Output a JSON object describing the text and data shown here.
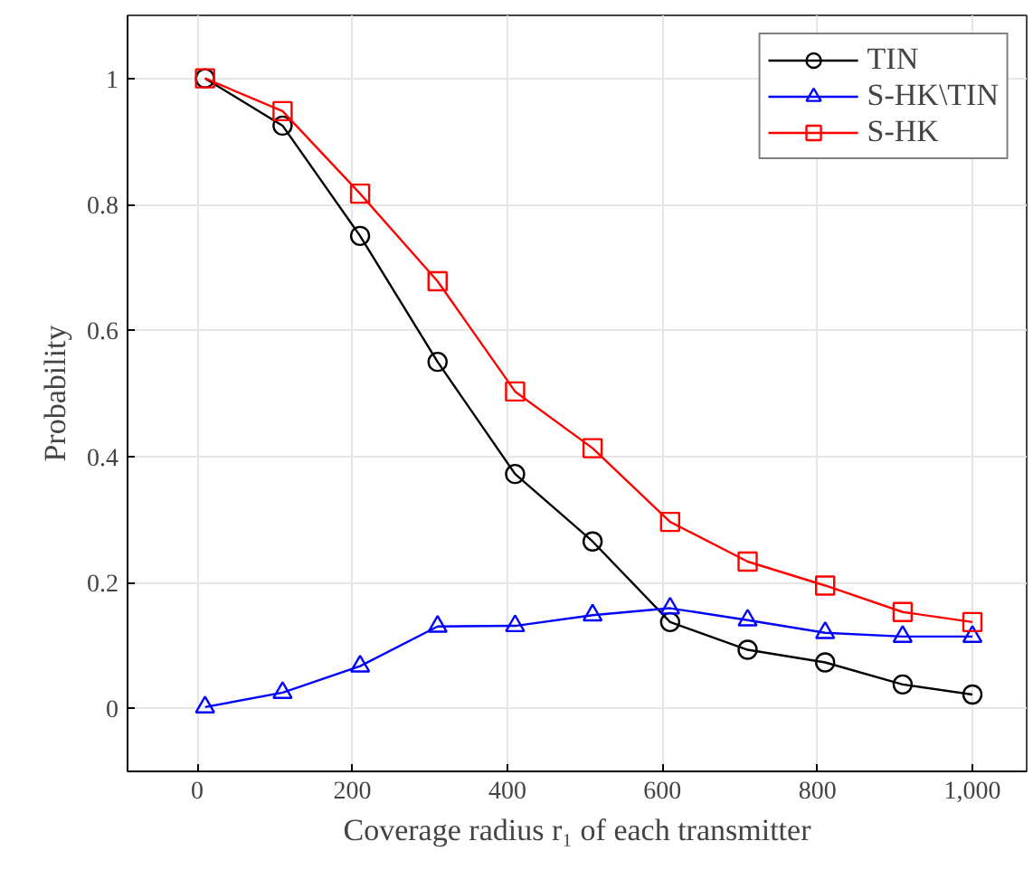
{
  "chart_data": {
    "type": "line",
    "xlabel": "Coverage radius r₁ of each transmitter",
    "ylabel": "Probability",
    "x": [
      10,
      110,
      210,
      310,
      410,
      510,
      610,
      710,
      810,
      910,
      1000
    ],
    "xlim": [
      -90,
      1070
    ],
    "xticks": [
      0,
      200,
      400,
      600,
      800,
      {
        "value": 1000,
        "label": "1,000"
      }
    ],
    "ylim": [
      -0.1,
      1.1
    ],
    "yticks": [
      0,
      0.2,
      0.4,
      0.6,
      0.8,
      1
    ],
    "grid": true,
    "legend": "top right",
    "line_style": "solid",
    "series": [
      {
        "name": "TIN",
        "color": "#000000",
        "marker": "circle",
        "values": [
          1.0,
          0.925,
          0.75,
          0.55,
          0.372,
          0.265,
          0.137,
          0.093,
          0.073,
          0.038,
          0.022
        ]
      },
      {
        "name": "S-HK\\TIN",
        "color": "#0000ff",
        "marker": "triangle",
        "values": [
          0.002,
          0.025,
          0.067,
          0.13,
          0.131,
          0.148,
          0.159,
          0.14,
          0.12,
          0.114,
          0.114
        ]
      },
      {
        "name": "S-HK",
        "color": "#ff0000",
        "marker": "square",
        "values": [
          1.0,
          0.948,
          0.817,
          0.678,
          0.503,
          0.413,
          0.296,
          0.233,
          0.195,
          0.153,
          0.137
        ]
      }
    ]
  }
}
